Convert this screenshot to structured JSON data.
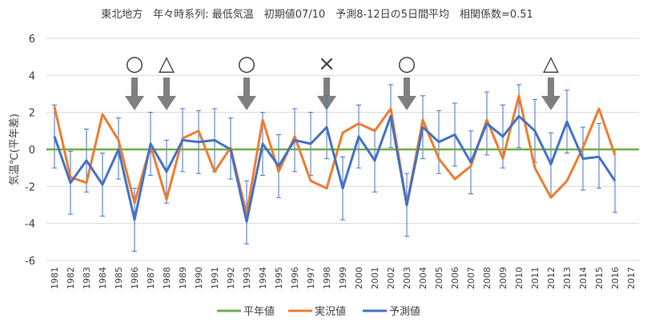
{
  "chart_data": {
    "type": "line",
    "title": "東北地方　年々時系列: 最低気温　初期値07/10　予測8-12日の5日間平均　相関係数=0.51",
    "ylabel": "気温℃(平年差)",
    "xlabel": "",
    "ylim": [
      -6,
      6
    ],
    "yticks": [
      -6,
      -4,
      -2,
      0,
      2,
      4,
      6
    ],
    "grid": "horizontal",
    "legend_position": "bottom",
    "categories": [
      "1981",
      "1982",
      "1983",
      "1984",
      "1985",
      "1986",
      "1987",
      "1988",
      "1989",
      "1990",
      "1991",
      "1992",
      "1993",
      "1994",
      "1995",
      "1996",
      "1997",
      "1998",
      "1999",
      "2000",
      "2001",
      "2002",
      "2003",
      "2004",
      "2005",
      "2006",
      "2007",
      "2008",
      "2009",
      "2010",
      "2011",
      "2012",
      "2013",
      "2014",
      "2015",
      "2016",
      "2017"
    ],
    "series": [
      {
        "name": "平年値",
        "color": "#70ad47",
        "values": [
          0,
          0,
          0,
          0,
          0,
          0,
          0,
          0,
          0,
          0,
          0,
          0,
          0,
          0,
          0,
          0,
          0,
          0,
          0,
          0,
          0,
          0,
          0,
          0,
          0,
          0,
          0,
          0,
          0,
          0,
          0,
          0,
          0,
          0,
          0,
          0,
          0
        ]
      },
      {
        "name": "実況値",
        "color": "#ed7d31",
        "values": [
          2.3,
          -1.5,
          -1.8,
          1.9,
          0.5,
          -2.9,
          0.2,
          -2.7,
          0.6,
          1.0,
          -1.2,
          0.1,
          -3.5,
          1.6,
          -1.2,
          0.7,
          -1.7,
          -2.1,
          0.9,
          1.4,
          1.0,
          2.2,
          -3.0,
          1.6,
          -0.5,
          -1.6,
          -0.9,
          1.6,
          -0.5,
          2.9,
          -1.0,
          -2.6,
          -1.7,
          0.1,
          2.2,
          -0.3,
          null
        ]
      },
      {
        "name": "予測値",
        "color": "#4472c4",
        "values": [
          0.7,
          -1.8,
          -0.6,
          -1.9,
          0.0,
          -3.8,
          0.3,
          -1.2,
          0.5,
          0.4,
          0.5,
          0.0,
          -3.9,
          0.3,
          -0.9,
          0.5,
          0.3,
          1.2,
          -2.1,
          0.7,
          -0.6,
          1.8,
          -3.0,
          1.2,
          0.4,
          0.8,
          -0.7,
          1.4,
          0.7,
          1.8,
          1.0,
          -0.8,
          1.5,
          -0.5,
          -0.4,
          -1.7,
          null
        ],
        "error_low": [
          -1.0,
          -3.5,
          -2.3,
          -3.6,
          -1.6,
          -5.5,
          -1.4,
          -2.9,
          -1.2,
          -1.3,
          -1.2,
          -1.6,
          -5.1,
          -1.4,
          -2.6,
          -1.2,
          -1.4,
          -0.5,
          -3.8,
          -1.0,
          -2.3,
          0.1,
          -4.7,
          -0.5,
          -1.3,
          -0.9,
          -2.4,
          -0.3,
          -1.0,
          0.1,
          -0.7,
          -2.5,
          -0.2,
          -2.2,
          -2.1,
          -3.4,
          null
        ],
        "error_high": [
          2.4,
          -0.1,
          1.1,
          -0.2,
          1.7,
          -2.1,
          2.0,
          0.5,
          2.2,
          2.1,
          2.2,
          1.7,
          -1.7,
          2.0,
          0.8,
          2.2,
          2.0,
          2.9,
          -0.4,
          2.4,
          1.1,
          3.5,
          -1.3,
          2.9,
          2.1,
          2.5,
          1.0,
          3.1,
          2.4,
          3.5,
          2.7,
          0.9,
          3.2,
          1.2,
          1.4,
          0.0,
          null
        ]
      }
    ],
    "annotations": [
      {
        "year": "1986",
        "symbol": "○"
      },
      {
        "year": "1988",
        "symbol": "△"
      },
      {
        "year": "1993",
        "symbol": "○"
      },
      {
        "year": "1998",
        "symbol": "×"
      },
      {
        "year": "2003",
        "symbol": "○"
      },
      {
        "year": "2012",
        "symbol": "△"
      }
    ]
  }
}
